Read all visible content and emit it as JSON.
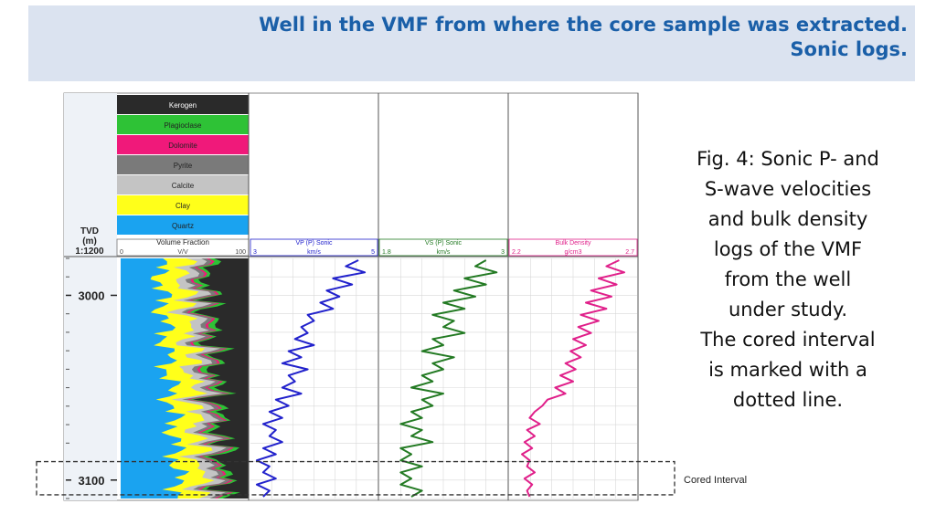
{
  "header": {
    "title_line1": "Well in the VMF from where the core sample was extracted.",
    "title_line2": "Sonic logs.",
    "color": "#1a5fa8"
  },
  "caption": {
    "lines": [
      "Fig. 4: Sonic P- and",
      "S-wave velocities",
      "and bulk density",
      "logs of the VMF",
      "from the well",
      "under study.",
      "The cored interval",
      "is marked with a",
      "dotted line."
    ]
  },
  "chart_data": {
    "type": "line",
    "depth_axis": {
      "label_line1": "TVD",
      "label_line2": "(m)",
      "scale": "1:1200",
      "ticks": [
        "3000",
        "3100"
      ],
      "tick_values": [
        3000,
        3100
      ],
      "range": [
        2980,
        3110
      ]
    },
    "lithology_legend": [
      {
        "name": "Kerogen",
        "color": "#2a2a2a"
      },
      {
        "name": "Plagioclase",
        "color": "#2ec236"
      },
      {
        "name": "Dolomite",
        "color": "#f0197a"
      },
      {
        "name": "Pyrite",
        "color": "#7a7a7a"
      },
      {
        "name": "Calcite",
        "color": "#c4c4c4"
      },
      {
        "name": "Clay",
        "color": "#ffff1a"
      },
      {
        "name": "Quartz",
        "color": "#1aa3f0"
      }
    ],
    "volume_track": {
      "label": "Volume Fraction",
      "unit": "V/V",
      "min": "0",
      "max": "100"
    },
    "tracks": [
      {
        "name": "VP (P) Sonic",
        "unit": "km/s",
        "min": "3",
        "max": "5",
        "range": [
          3,
          5
        ],
        "color": "#2222cc",
        "values": [
          4.7,
          4.5,
          4.8,
          4.3,
          4.6,
          4.2,
          4.4,
          4.1,
          4.3,
          3.9,
          4.0,
          3.8,
          3.9,
          3.7,
          4.0,
          3.6,
          3.8,
          3.5,
          3.9,
          3.6,
          3.7,
          3.5,
          3.8,
          3.4,
          3.6,
          3.3,
          3.5,
          3.2,
          3.4,
          3.3,
          3.5,
          3.2,
          3.4,
          3.1,
          3.3,
          3.2,
          3.4,
          3.1,
          3.3,
          3.2
        ]
      },
      {
        "name": "VS (P) Sonic",
        "unit": "km/s",
        "min": "1.8",
        "max": "3",
        "range": [
          1.8,
          3
        ],
        "color": "#237a23",
        "values": [
          2.8,
          2.7,
          2.9,
          2.6,
          2.8,
          2.5,
          2.7,
          2.4,
          2.6,
          2.3,
          2.5,
          2.4,
          2.6,
          2.3,
          2.4,
          2.2,
          2.5,
          2.3,
          2.4,
          2.2,
          2.3,
          2.1,
          2.4,
          2.2,
          2.3,
          2.1,
          2.2,
          2.0,
          2.2,
          2.1,
          2.3,
          2.0,
          2.1,
          2.0,
          2.2,
          2.0,
          2.1,
          2.0,
          2.2,
          2.1
        ]
      },
      {
        "name": "Bulk Density",
        "unit": "g/cm3",
        "min": "2.2",
        "max": "2.7",
        "range": [
          2.2,
          2.7
        ],
        "color": "#e0208a",
        "values": [
          2.63,
          2.58,
          2.65,
          2.55,
          2.62,
          2.52,
          2.6,
          2.5,
          2.58,
          2.48,
          2.55,
          2.47,
          2.52,
          2.45,
          2.5,
          2.44,
          2.48,
          2.42,
          2.46,
          2.4,
          2.45,
          2.38,
          2.42,
          2.35,
          2.33,
          2.3,
          2.28,
          2.32,
          2.27,
          2.3,
          2.26,
          2.29,
          2.25,
          2.28,
          2.27,
          2.3,
          2.26,
          2.29,
          2.27,
          2.28
        ]
      }
    ],
    "cored_interval": {
      "label": "Cored Interval",
      "top": 3090,
      "bottom": 3108
    }
  }
}
